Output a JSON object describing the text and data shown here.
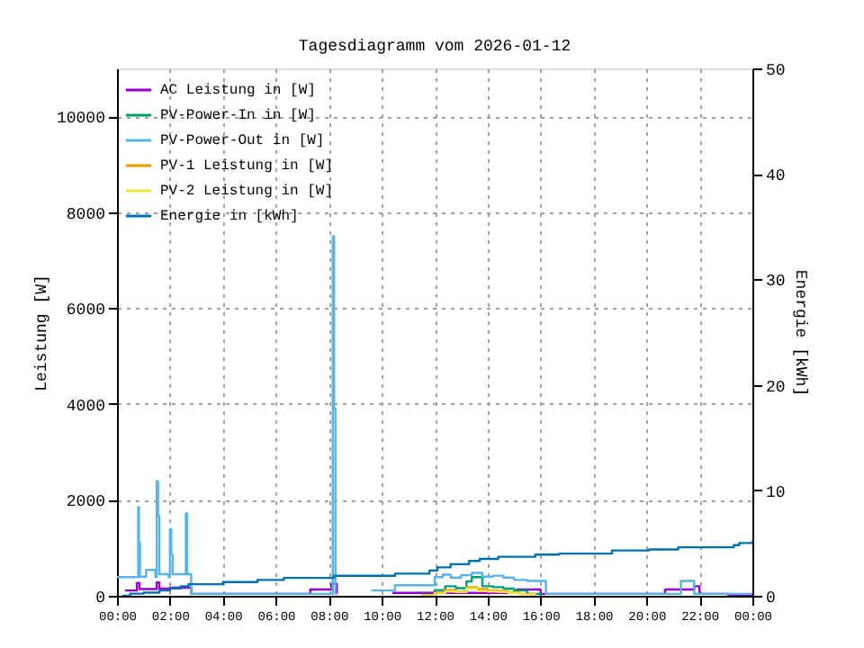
{
  "chart_data": {
    "type": "step",
    "title": "Tagesdiagramm vom 2026-01-12",
    "ylabel": "Leistung [W]",
    "y2label": "Energie [kWh]",
    "xlim": [
      0,
      24
    ],
    "xticks": [
      {
        "value": 0,
        "label": "00:00"
      },
      {
        "value": 2,
        "label": "02:00"
      },
      {
        "value": 4,
        "label": "04:00"
      },
      {
        "value": 6,
        "label": "06:00"
      },
      {
        "value": 8,
        "label": "08:00"
      },
      {
        "value": 10,
        "label": "10:00"
      },
      {
        "value": 12,
        "label": "12:00"
      },
      {
        "value": 14,
        "label": "14:00"
      },
      {
        "value": 16,
        "label": "16:00"
      },
      {
        "value": 18,
        "label": "18:00"
      },
      {
        "value": 20,
        "label": "20:00"
      },
      {
        "value": 22,
        "label": "22:00"
      },
      {
        "value": 24,
        "label": "00:00"
      }
    ],
    "ylim": [
      0,
      11000
    ],
    "yticks": [
      0,
      2000,
      4000,
      6000,
      8000,
      10000
    ],
    "y2lim": [
      0,
      50
    ],
    "y2ticks": [
      0,
      10,
      20,
      30,
      40,
      50
    ],
    "grid": true,
    "legend": "top left",
    "marker": "none",
    "line_style": "solid",
    "series": [
      {
        "name": "AC Leistung in [W]",
        "color": "#9400d3",
        "x": [
          0.3,
          0.75,
          0.85,
          1.5,
          1.6,
          2.0,
          2.8,
          7.3,
          8.1,
          8.3,
          9.1,
          10.4,
          15.1,
          16.0,
          20.7,
          21.8,
          22.0,
          23.1,
          24
        ],
        "values": [
          110,
          270,
          140,
          280,
          150,
          170,
          40,
          130,
          250,
          40,
          null,
          60,
          130,
          40,
          130,
          200,
          40,
          20,
          20
        ]
      },
      {
        "name": "PV-Power-In in [W]",
        "color": "#009e73",
        "x": [
          11.5,
          12.0,
          12.4,
          12.8,
          13.2,
          13.4,
          13.8,
          14.2,
          14.6,
          15.0,
          15.5,
          16.0
        ],
        "values": [
          20,
          120,
          200,
          160,
          300,
          390,
          200,
          180,
          150,
          110,
          40,
          0
        ]
      },
      {
        "name": "PV-Power-Out in [W]",
        "color": "#56b4e9",
        "x": [
          0.0,
          0.8,
          0.83,
          0.87,
          0.9,
          1.1,
          1.45,
          1.5,
          1.55,
          1.6,
          1.95,
          2.0,
          2.05,
          2.1,
          2.55,
          2.6,
          2.65,
          2.8,
          8.1,
          8.15,
          8.2,
          8.25,
          8.3,
          9.2,
          9.6,
          10.5,
          12.0,
          12.3,
          12.6,
          13.0,
          13.4,
          13.8,
          14.2,
          14.6,
          15.0,
          15.5,
          16.2,
          21.3,
          21.8,
          24
        ],
        "values": [
          390,
          1850,
          1100,
          390,
          400,
          540,
          390,
          2390,
          1660,
          450,
          390,
          1390,
          860,
          450,
          450,
          1720,
          450,
          40,
          40,
          7500,
          3900,
          40,
          40,
          null,
          110,
          220,
          390,
          440,
          380,
          430,
          480,
          400,
          420,
          380,
          330,
          310,
          40,
          310,
          40,
          40
        ]
      },
      {
        "name": "PV-1 Leistung in [W]",
        "color": "#e69f00",
        "x": [
          11.5,
          12.0,
          12.4,
          12.8,
          13.2,
          13.6,
          14.0,
          14.4,
          14.8,
          15.2,
          15.8
        ],
        "values": [
          10,
          60,
          120,
          90,
          180,
          140,
          110,
          100,
          70,
          40,
          0
        ]
      },
      {
        "name": "PV-2 Leistung in [W]",
        "color": "#f0e442",
        "x": [
          11.5,
          12.0,
          12.4,
          12.8,
          13.2,
          13.6,
          14.0,
          14.4,
          14.8,
          15.2,
          15.8
        ],
        "values": [
          10,
          50,
          90,
          80,
          150,
          100,
          90,
          80,
          60,
          30,
          0
        ]
      },
      {
        "name": "Energie in [kWh]",
        "color": "#0072b2",
        "axis": "y2",
        "x": [
          0.2,
          0.5,
          1.0,
          1.6,
          2.0,
          2.4,
          2.7,
          4.0,
          5.3,
          6.3,
          8.2,
          10.5,
          11.8,
          12.1,
          12.6,
          13.3,
          13.7,
          14.4,
          15.8,
          16.7,
          18.7,
          20.1,
          21.2,
          23.3,
          23.5,
          24
        ],
        "values": [
          0,
          0.2,
          0.3,
          0.5,
          0.7,
          0.9,
          1.1,
          1.3,
          1.5,
          1.7,
          1.9,
          2.1,
          2.4,
          2.7,
          3.0,
          3.3,
          3.5,
          3.7,
          3.9,
          4.0,
          4.3,
          4.4,
          4.6,
          4.8,
          5.0,
          5.2
        ]
      }
    ]
  }
}
